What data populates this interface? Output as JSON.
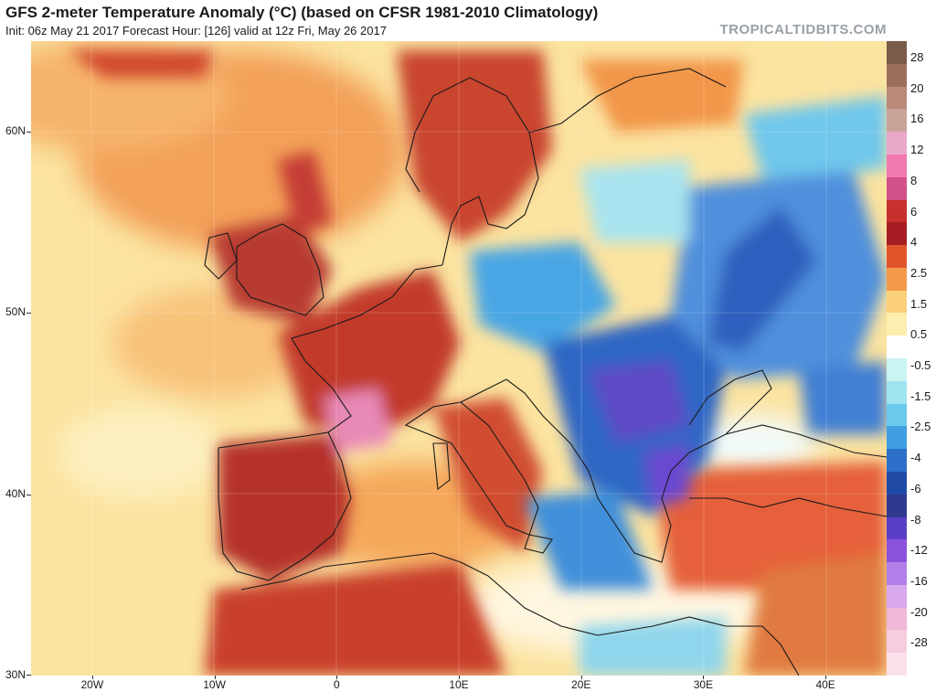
{
  "header": {
    "title": "GFS 2-meter Temperature Anomaly (°C) (based on CFSR 1981-2010 Climatology)",
    "subtitle": "Init: 06z May 21 2017   Forecast Hour: [126]   valid at 12z Fri, May 26 2017",
    "brand": "TROPICALTIDBITS.COM"
  },
  "map": {
    "lon_labels": [
      "20W",
      "10W",
      "0",
      "10E",
      "20E",
      "30E",
      "40E"
    ],
    "lon_values": [
      -20,
      -10,
      0,
      10,
      20,
      30,
      40
    ],
    "lat_labels": [
      "60N",
      "50N",
      "40N",
      "30N"
    ],
    "lat_values": [
      60,
      50,
      40,
      30
    ],
    "lon_range": [
      -25,
      45
    ],
    "lat_range": [
      30,
      65
    ]
  },
  "colorbar": {
    "labels": [
      "28",
      "20",
      "16",
      "12",
      "8",
      "6",
      "4",
      "2.5",
      "1.5",
      "0.5",
      "-0.5",
      "-1.5",
      "-2.5",
      "-4",
      "-6",
      "-8",
      "-12",
      "-16",
      "-20",
      "-28"
    ],
    "colors": [
      "#7a5a48",
      "#9b6e5c",
      "#b98a7a",
      "#c9a29a",
      "#e8a8c8",
      "#f07ab0",
      "#d2508a",
      "#c8302e",
      "#a51d22",
      "#e0552c",
      "#f39a4a",
      "#fbd07a",
      "#fdeeb0",
      "#ffffff",
      "#c8f4f4",
      "#9fe4ee",
      "#6ac9ec",
      "#3f9fe0",
      "#2d6fc8",
      "#1e4aa6",
      "#2e3a8e",
      "#5a3ec8",
      "#8a52dc",
      "#b080e8",
      "#d8a8ee",
      "#f0b8d8",
      "#f6cce0",
      "#fbe0ea"
    ]
  }
}
